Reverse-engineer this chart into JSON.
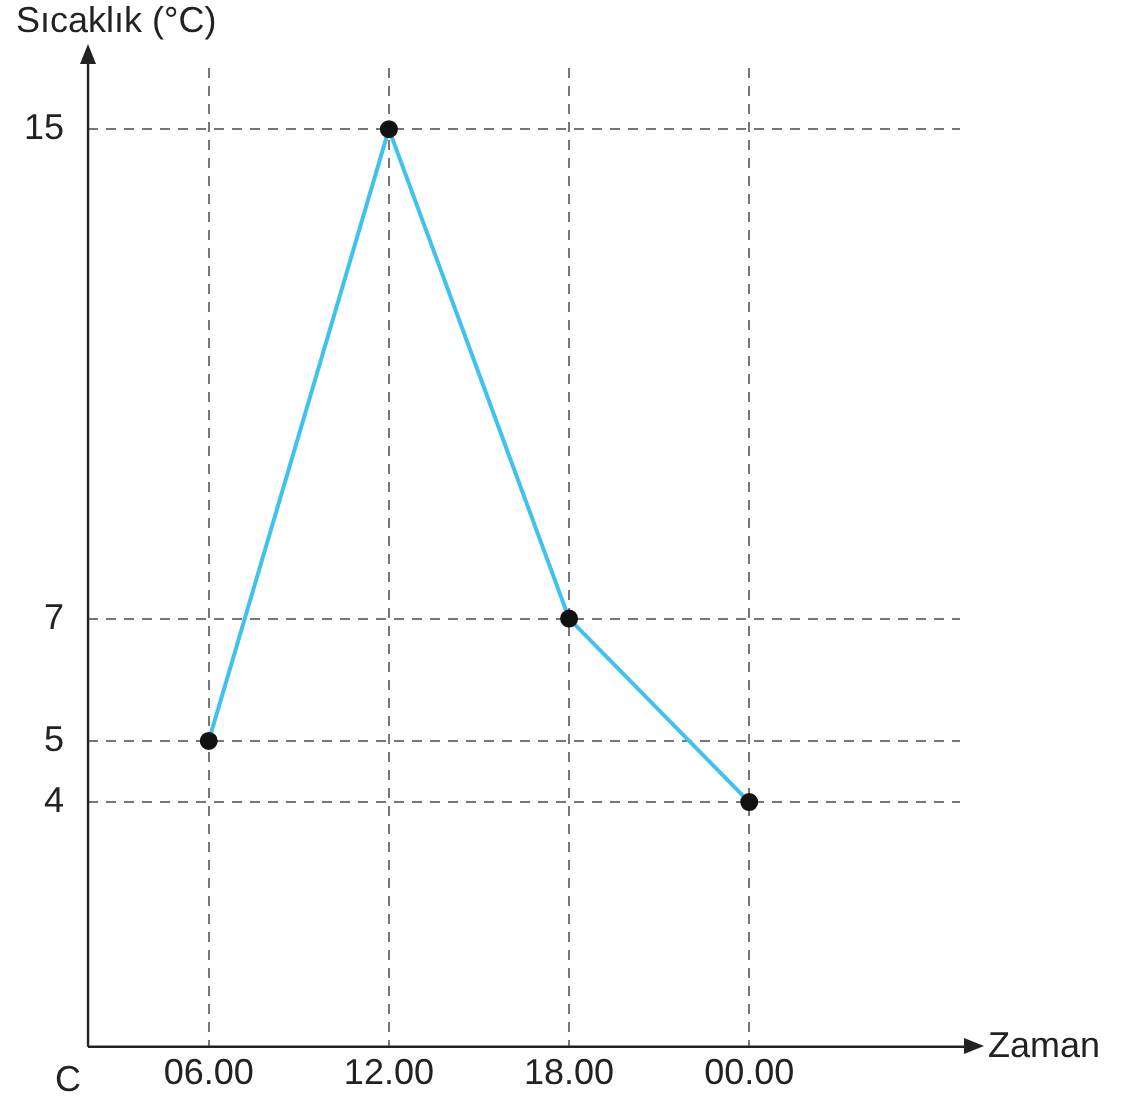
{
  "chart_data": {
    "type": "line",
    "xlabel": "Zaman",
    "ylabel": "Sıcaklık (°C)",
    "categories": [
      "06.00",
      "12.00",
      "18.00",
      "00.00"
    ],
    "series": [
      {
        "color": "#3fc3ee",
        "values": [
          5,
          15,
          7,
          4
        ]
      }
    ],
    "ylim": [
      0,
      16
    ],
    "yticks": [
      4,
      5,
      7,
      15
    ],
    "grid": true,
    "marker": "circle",
    "line_style": "solid",
    "legend": false,
    "annotations": [
      "C"
    ]
  }
}
